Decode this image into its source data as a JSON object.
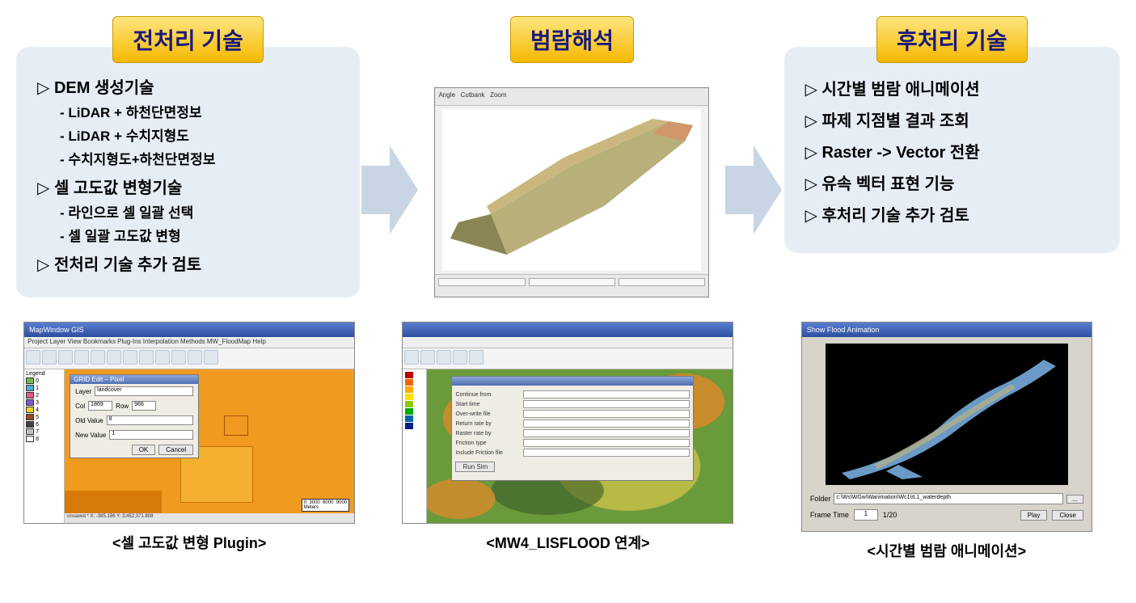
{
  "palette": {
    "badge_gradient_top": "#ffe680",
    "badge_gradient_bottom": "#f5b800",
    "badge_text": "#1a1a7a",
    "box_bg": "#e6edf5",
    "arrow_fill": "#c8d5e5",
    "text_black": "#000000",
    "caption_color": "#000000"
  },
  "columns": {
    "left": {
      "title": "전처리 기술",
      "items": [
        {
          "type": "main",
          "text": "DEM 생성기술"
        },
        {
          "type": "sub",
          "text": "LiDAR + 하천단면정보"
        },
        {
          "type": "sub",
          "text": "LiDAR + 수치지형도"
        },
        {
          "type": "sub",
          "text": "수치지형도+하천단면정보"
        },
        {
          "type": "main",
          "text": "셀 고도값 변형기술"
        },
        {
          "type": "sub",
          "text": "라인으로 셀 일괄 선택"
        },
        {
          "type": "sub",
          "text": "셀 일괄 고도값 변형"
        },
        {
          "type": "main",
          "text": "전처리 기술 추가 검토"
        }
      ]
    },
    "middle": {
      "title": "범람해석"
    },
    "right": {
      "title": "후처리 기술",
      "items": [
        {
          "type": "main",
          "text": "시간별 범람 애니메이션"
        },
        {
          "type": "main",
          "text": "파제 지점별 결과 조회"
        },
        {
          "type": "main",
          "text": "Raster -> Vector 전환"
        },
        {
          "type": "main",
          "text": "유속 벡터 표현 기능"
        },
        {
          "type": "main",
          "text": "후처리 기술 추가 검토"
        }
      ]
    }
  },
  "screenshots": {
    "terrain_viewer": {
      "window_title": "MapWindow GIS",
      "terrain_base_color": "#b8b07a",
      "terrain_highlight": "#c9b77f",
      "terrain_shadow": "#8a8554",
      "background": "#f0f0f0",
      "toolbar_labels": [
        "Angle",
        "Cutbank",
        "Zoom"
      ]
    },
    "left_screenshot": {
      "caption": "<셀 고도값 변형 Plugin>",
      "app_title": "MapWindow GIS",
      "menus": "Project  Layer  View  Bookmarks  Plug-Ins  Interpolation Methods  MW_FloodMap  Help",
      "map_bg": "#f09a1f",
      "map_patch": "#d87a0a",
      "legend_title": "Legend",
      "legend_colors": [
        "#6fbf4a",
        "#4bb0e0",
        "#e05a8a",
        "#7a5ad0",
        "#f5d020",
        "#a04820",
        "#404040",
        "#c0c0c0",
        "#ffffff"
      ],
      "dialog": {
        "title": "GRID Edit – Pixel",
        "fields": {
          "layer_label": "Layer",
          "layer_value": "landcover",
          "col_label": "Col",
          "col_value": "1869",
          "row_label": "Row",
          "row_value": "966",
          "old_label": "Old Value",
          "old_value": "8",
          "new_label": "New Value",
          "new_value": "1"
        },
        "buttons": {
          "ok": "OK",
          "cancel": "Cancel"
        }
      },
      "scalebar_labels": [
        "0",
        "3000",
        "6000",
        "9000"
      ],
      "scalebar_unit": "Meters",
      "statusbar": "unsaved *  X: -385.186  Y: 3,452,371.808"
    },
    "mid_screenshot": {
      "caption": "<MW4_LISFLOOD 연계>",
      "map_colors": {
        "green": "#6a9a3a",
        "orange": "#d88a2a",
        "yellow": "#d8c84a",
        "dark": "#3a5a2a"
      },
      "dialog_bg": "#efece4",
      "field_labels": [
        "Continue from",
        "Start time",
        "Over-write file",
        "Return rate by",
        "Raster rate by",
        "Friction type",
        "Include Friction file"
      ],
      "button_labels": [
        "Run Sim"
      ]
    },
    "right_screenshot": {
      "caption": "<시간별 범람 애니메이션>",
      "window_title": "Show Flood Animation",
      "river_bg": "#000000",
      "river_water_color": "#6a9ac5",
      "river_sand_color": "#c8b878",
      "folder_label": "Folder",
      "folder_value": "c:\\Ws\\WGw\\Wanimation\\Wc1\\rL1_waterdepth",
      "frametime_label": "Frame Time",
      "frametime_value": "1",
      "frame_counter": "1/20",
      "buttons": {
        "play": "Play",
        "close": "Close"
      }
    }
  }
}
